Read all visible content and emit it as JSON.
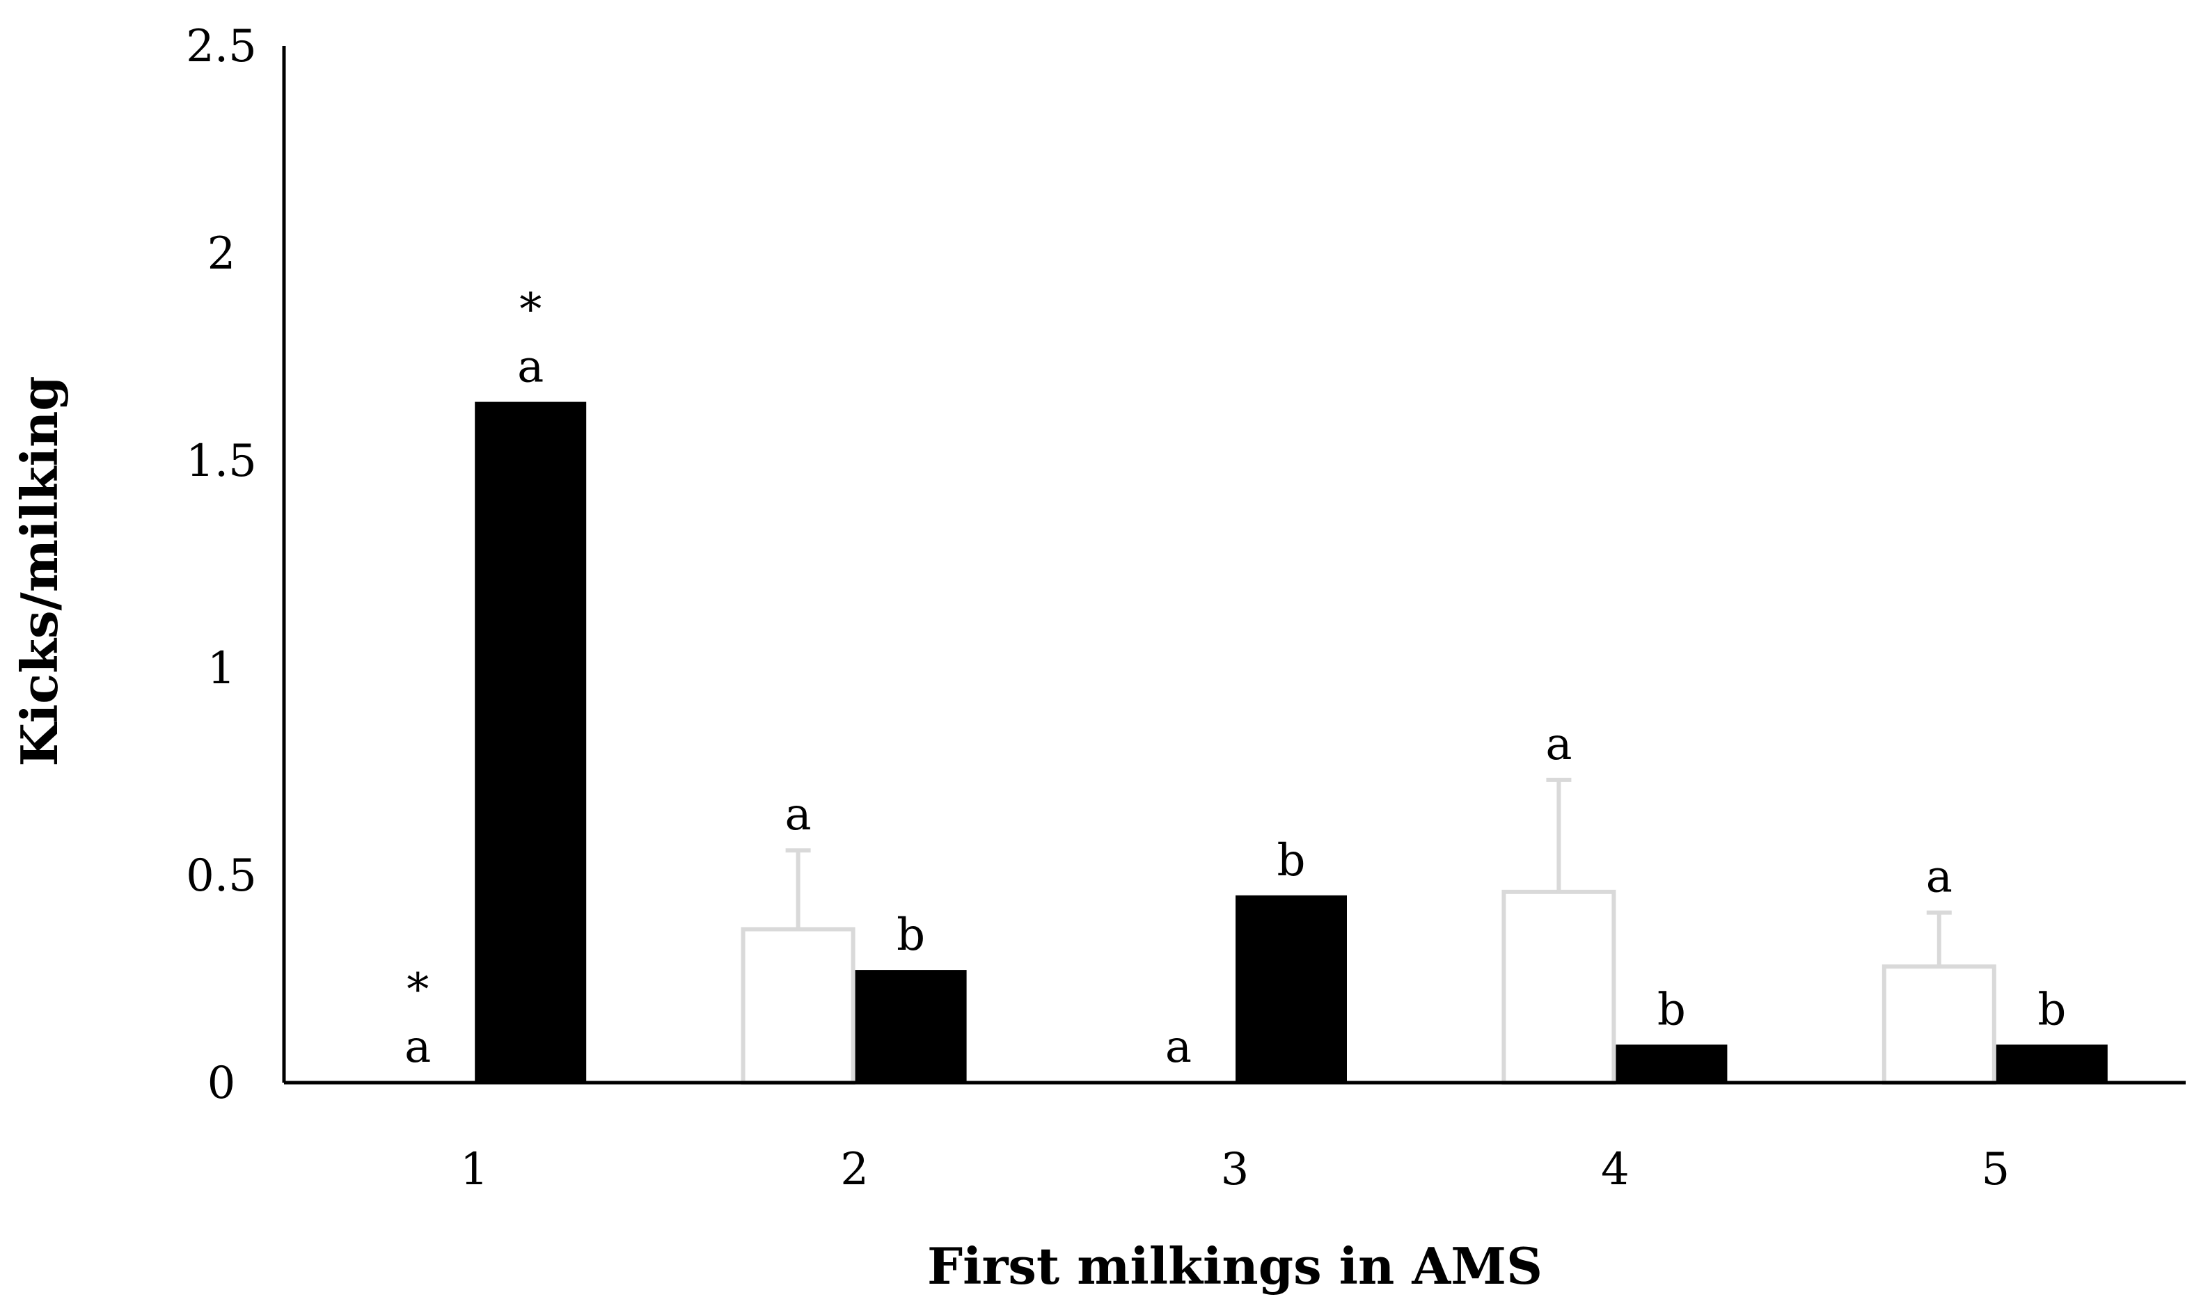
{
  "chart_data": {
    "type": "bar",
    "title": "",
    "xlabel": "First milkings in AMS",
    "ylabel": "Kicks/milking",
    "ylim": [
      0,
      2.5
    ],
    "yticks": [
      "0",
      "0.5",
      "1",
      "1.5",
      "2",
      "2.5"
    ],
    "categories": [
      "1",
      "2",
      "3",
      "4",
      "5"
    ],
    "grid": false,
    "legend": "none",
    "series": [
      {
        "fill": "#ffffff",
        "stroke": "#d9d9d9",
        "values": [
          0,
          0.37,
          0,
          0.46,
          0.28
        ],
        "error": [
          0,
          0.19,
          0,
          0.27,
          0.13
        ],
        "letters": [
          "a",
          "a",
          "a",
          "a",
          "a"
        ],
        "marks": [
          "*",
          "",
          "",
          "",
          ""
        ]
      },
      {
        "fill": "#000000",
        "stroke": "#000000",
        "values": [
          1.64,
          0.27,
          0.45,
          0.09,
          0.09
        ],
        "error": [
          0,
          0,
          0,
          0,
          0
        ],
        "letters": [
          "a",
          "b",
          "b",
          "b",
          "b"
        ],
        "marks": [
          "*",
          "",
          "",
          "",
          ""
        ]
      }
    ]
  }
}
